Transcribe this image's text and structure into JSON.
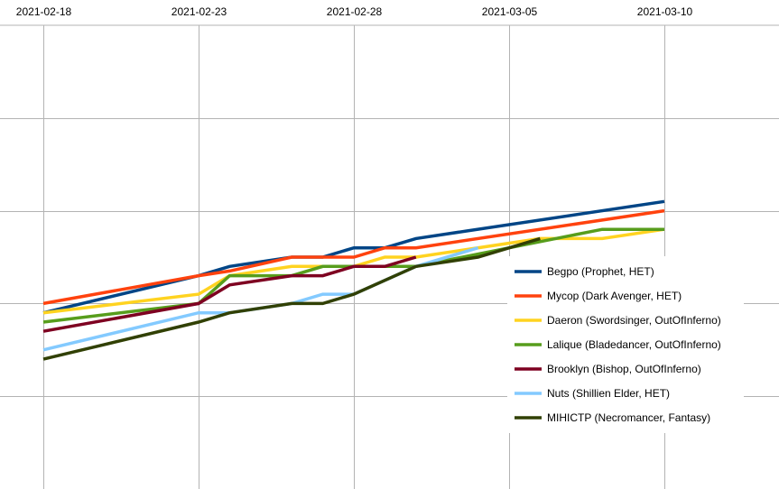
{
  "chart_data": {
    "type": "line",
    "x_format": "date",
    "xlim": [
      "2021-02-18",
      "2021-03-10"
    ],
    "x_ticks": [
      "2021-02-18",
      "2021-02-23",
      "2021-02-28",
      "2021-03-05",
      "2021-03-10"
    ],
    "ylim": [
      0,
      100
    ],
    "y_gridlines": [
      20,
      40,
      60,
      80
    ],
    "grid": true,
    "legend_position": "right",
    "title": "",
    "xlabel": "",
    "ylabel": "",
    "series": [
      {
        "name": "Begpo (Prophet, HET)",
        "color": "#004586",
        "points": [
          [
            "2021-02-18",
            38.0
          ],
          [
            "2021-02-23",
            46.0
          ],
          [
            "2021-02-24",
            48.0
          ],
          [
            "2021-02-26",
            50.0
          ],
          [
            "2021-02-27",
            50.0
          ],
          [
            "2021-02-28",
            52.0
          ],
          [
            "2021-03-01",
            52.0
          ],
          [
            "2021-03-02",
            54.0
          ],
          [
            "2021-03-10",
            62.0
          ]
        ]
      },
      {
        "name": "Mycop (Dark Avenger, HET)",
        "color": "#ff420e",
        "points": [
          [
            "2021-02-18",
            40.0
          ],
          [
            "2021-02-23",
            46.0
          ],
          [
            "2021-02-24",
            47.0
          ],
          [
            "2021-02-26",
            50.0
          ],
          [
            "2021-02-28",
            50.0
          ],
          [
            "2021-03-01",
            52.0
          ],
          [
            "2021-03-02",
            52.0
          ],
          [
            "2021-03-10",
            60.0
          ]
        ]
      },
      {
        "name": "Daeron (Swordsinger, OutOfInferno)",
        "color": "#ffd320",
        "points": [
          [
            "2021-02-18",
            38.0
          ],
          [
            "2021-02-23",
            42.0
          ],
          [
            "2021-02-24",
            46.0
          ],
          [
            "2021-02-26",
            48.0
          ],
          [
            "2021-02-28",
            48.0
          ],
          [
            "2021-03-01",
            50.0
          ],
          [
            "2021-03-02",
            50.0
          ],
          [
            "2021-03-06",
            54.0
          ],
          [
            "2021-03-08",
            54.0
          ],
          [
            "2021-03-10",
            56.0
          ]
        ]
      },
      {
        "name": "Lalique (Bladedancer, OutOfInferno)",
        "color": "#579d1c",
        "points": [
          [
            "2021-02-18",
            36.0
          ],
          [
            "2021-02-23",
            40.0
          ],
          [
            "2021-02-24",
            46.0
          ],
          [
            "2021-02-26",
            46.0
          ],
          [
            "2021-02-27",
            48.0
          ],
          [
            "2021-03-02",
            48.0
          ],
          [
            "2021-03-05",
            52.0
          ],
          [
            "2021-03-08",
            56.0
          ],
          [
            "2021-03-10",
            56.0
          ]
        ]
      },
      {
        "name": "Brooklyn (Bishop, OutOfInferno)",
        "color": "#7e0021",
        "points": [
          [
            "2021-02-18",
            34.0
          ],
          [
            "2021-02-23",
            40.0
          ],
          [
            "2021-02-24",
            44.0
          ],
          [
            "2021-02-26",
            46.0
          ],
          [
            "2021-02-27",
            46.0
          ],
          [
            "2021-02-28",
            48.0
          ],
          [
            "2021-03-01",
            48.0
          ],
          [
            "2021-03-02",
            50.0
          ]
        ]
      },
      {
        "name": "Nuts (Shillien Elder, HET)",
        "color": "#83caff",
        "points": [
          [
            "2021-02-18",
            30.0
          ],
          [
            "2021-02-23",
            38.0
          ],
          [
            "2021-02-24",
            38.0
          ],
          [
            "2021-02-26",
            40.0
          ],
          [
            "2021-02-27",
            42.0
          ],
          [
            "2021-02-28",
            42.0
          ],
          [
            "2021-03-02",
            48.0
          ],
          [
            "2021-03-04",
            52.0
          ]
        ]
      },
      {
        "name": "MIHICTP (Necromancer, Fantasy)",
        "color": "#314004",
        "points": [
          [
            "2021-02-18",
            28.0
          ],
          [
            "2021-02-23",
            36.0
          ],
          [
            "2021-02-24",
            38.0
          ],
          [
            "2021-02-26",
            40.0
          ],
          [
            "2021-02-27",
            40.0
          ],
          [
            "2021-02-28",
            42.0
          ],
          [
            "2021-03-02",
            48.0
          ],
          [
            "2021-03-04",
            50.0
          ],
          [
            "2021-03-06",
            54.0
          ]
        ]
      }
    ]
  }
}
